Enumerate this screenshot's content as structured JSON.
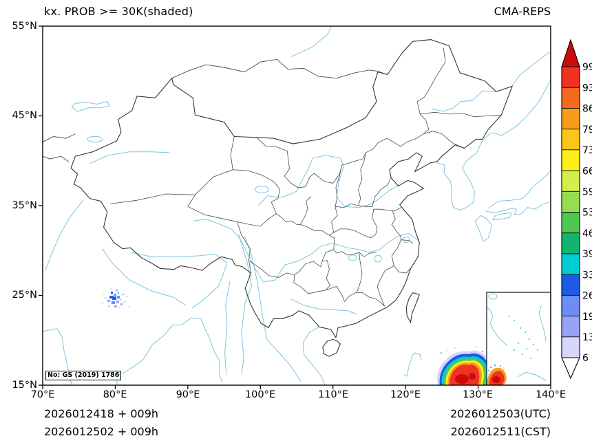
{
  "header": {
    "title_left": "kx. PROB >= 30K(shaded)",
    "title_right": "CMA-REPS"
  },
  "axes": {
    "lat_labels": [
      "55°N",
      "45°N",
      "35°N",
      "25°N",
      "15°N"
    ],
    "lon_labels": [
      "70°E",
      "80°E",
      "90°E",
      "100°E",
      "110°E",
      "120°E",
      "130°E",
      "140°E"
    ]
  },
  "colorbar": {
    "labels": [
      "99",
      "93",
      "86",
      "79",
      "73",
      "66",
      "59",
      "53",
      "46",
      "39",
      "33",
      "26",
      "19",
      "13",
      "6"
    ],
    "colors_top_to_bottom": [
      "#cc0a0a",
      "#f03222",
      "#f4691e",
      "#f89c1c",
      "#fbc61a",
      "#fdee1a",
      "#d4ee4e",
      "#98dc50",
      "#50c850",
      "#14b46e",
      "#00cdd2",
      "#1e5ae6",
      "#6e8cf5",
      "#9aa2f5",
      "#d6d6fa",
      "#ffffff"
    ]
  },
  "map": {
    "license_label": "No: GS (2019) 1786",
    "water_color": "#79c6e0",
    "border_color": "#4b4b4b",
    "frame_color": "#000000"
  },
  "footer": {
    "left_line1": "2026012418  +  009h",
    "left_line2": "2026012502  +  009h",
    "right_line1": "2026012503(UTC)",
    "right_line2": "2026012511(CST)"
  },
  "chart_data": {
    "type": "heatmap",
    "title": "kx. PROB >= 30K(shaded)",
    "model": "CMA-REPS",
    "x_ticks_lon_e": [
      70,
      80,
      90,
      100,
      110,
      120,
      130,
      140
    ],
    "y_ticks_lat_n": [
      15,
      25,
      35,
      45,
      55
    ],
    "levels_percent": [
      6,
      13,
      19,
      26,
      33,
      39,
      46,
      53,
      59,
      66,
      73,
      79,
      86,
      93,
      99
    ],
    "legend_position": "right",
    "shaded_features": [
      {
        "description": "scattered low-probability cells (6-33%)",
        "approx_lon_e": [
          77,
          82
        ],
        "approx_lat_n": [
          24,
          26.5
        ]
      },
      {
        "description": "high-probability maximum (>=99%) near bottom-right edge",
        "approx_lon_e": [
          124.5,
          131.5
        ],
        "approx_lat_n": [
          15,
          18.5
        ]
      },
      {
        "description": "small high-probability core shown inside South China Sea inset",
        "approx_lon_e": null,
        "approx_lat_n": null
      }
    ]
  }
}
